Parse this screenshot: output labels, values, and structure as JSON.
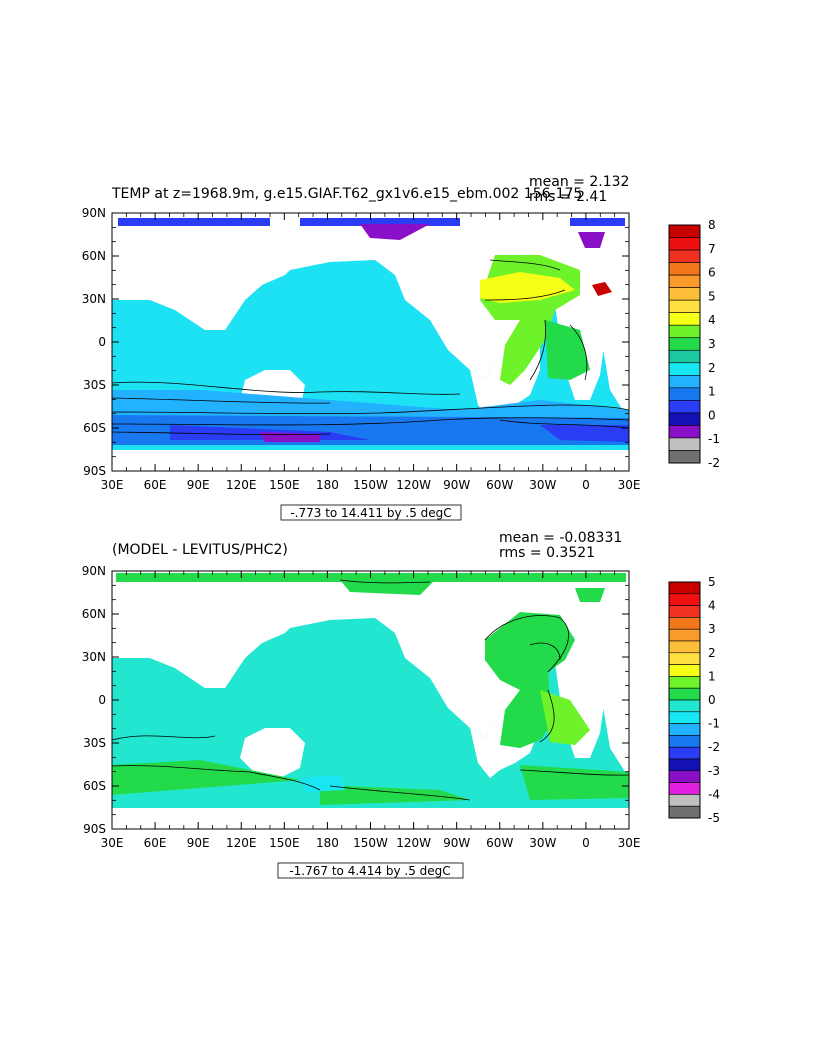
{
  "colors": {
    "ocean_top": "#1ce2f4",
    "ocean_bottom": "#22e6d0",
    "land": "#ffffff",
    "frame": "#000000"
  },
  "chart_data": [
    {
      "type": "heatmap",
      "title": "TEMP at z=1968.9m, g.e15.GIAF.T62_gx1v6.e15_ebm.002 156-175",
      "stats": {
        "mean": "mean = 2.132",
        "rms": "rms = 2.41"
      },
      "xticks": [
        "30E",
        "60E",
        "90E",
        "120E",
        "150E",
        "180",
        "150W",
        "120W",
        "90W",
        "60W",
        "30W",
        "0",
        "30E"
      ],
      "yticks": [
        "90N",
        "60N",
        "30N",
        "0",
        "30S",
        "60S",
        "90S"
      ],
      "xlim": [
        30,
        390
      ],
      "ylim": [
        -90,
        90
      ],
      "contour_info": "-.773 to 14.411 by .5 degC",
      "colorbar": {
        "labels": [
          "8",
          "7",
          "6",
          "5",
          "4",
          "3",
          "2",
          "1",
          "0",
          "-1",
          "-2"
        ],
        "colors": [
          "#c80000",
          "#ee1010",
          "#f03020",
          "#f2771a",
          "#f99a2a",
          "#fdbf3a",
          "#ffe040",
          "#f6ff16",
          "#6ef22a",
          "#22da4a",
          "#1cc8a0",
          "#18e7f2",
          "#22b2ff",
          "#1878f0",
          "#2a3cf4",
          "#1410b4",
          "#8a10c8",
          "#c0c0c0",
          "#707070"
        ]
      }
    },
    {
      "type": "heatmap",
      "title": "(MODEL - LEVITUS/PHC2)",
      "stats": {
        "mean": "mean = -0.08331",
        "rms": "rms = 0.3521"
      },
      "xticks": [
        "30E",
        "60E",
        "90E",
        "120E",
        "150E",
        "180",
        "150W",
        "120W",
        "90W",
        "60W",
        "30W",
        "0",
        "30E"
      ],
      "yticks": [
        "90N",
        "60N",
        "30N",
        "0",
        "30S",
        "60S",
        "90S"
      ],
      "xlim": [
        30,
        390
      ],
      "ylim": [
        -90,
        90
      ],
      "contour_info": "-1.767 to 4.414 by .5 degC",
      "colorbar": {
        "labels": [
          "5",
          "4",
          "3",
          "2",
          "1",
          "0",
          "-1",
          "-2",
          "-3",
          "-4",
          "-5"
        ],
        "colors": [
          "#c80000",
          "#ee1010",
          "#f03020",
          "#f2771a",
          "#f99a2a",
          "#fdbf3a",
          "#ffe040",
          "#f6ff16",
          "#6ef22a",
          "#22da4a",
          "#22e6d0",
          "#18e7f2",
          "#22b2ff",
          "#1878f0",
          "#2a3cf4",
          "#1410b4",
          "#8a10c8",
          "#e020e0",
          "#c0c0c0",
          "#707070"
        ]
      }
    }
  ]
}
